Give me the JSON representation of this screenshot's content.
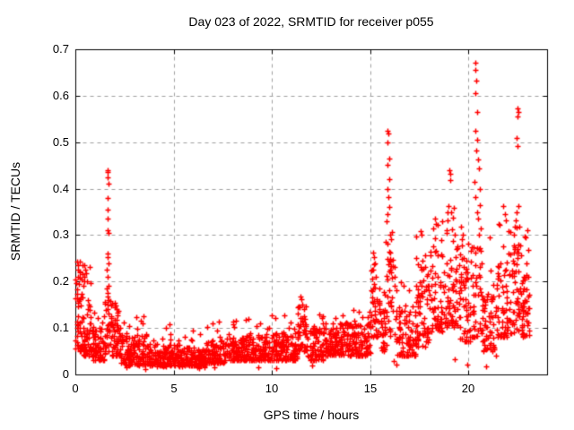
{
  "chart_data": {
    "type": "scatter",
    "title": "Day 023 of 2022, SRMTID for receiver p055",
    "xlabel": "GPS time / hours",
    "ylabel": "SRMTID / TECUs",
    "xlim": [
      0,
      24
    ],
    "ylim": [
      0,
      0.7
    ],
    "xticks": [
      0,
      5,
      10,
      15,
      20
    ],
    "xtick_labels": [
      "0",
      "5",
      "10",
      "15",
      "20"
    ],
    "yticks": [
      0,
      0.1,
      0.2,
      0.3,
      0.4,
      0.5,
      0.6,
      0.7
    ],
    "ytick_labels": [
      "0",
      "0.1",
      "0.2",
      "0.3",
      "0.4",
      "0.5",
      "0.6",
      "0.7"
    ],
    "grid": {
      "show": true,
      "style": "dashed",
      "color": "#a0a0a0"
    },
    "background": "#ffffff",
    "border_color": "#000000",
    "legend": "none",
    "series": [
      {
        "name": "SRMTID",
        "marker": "plus",
        "color": "#ff0000",
        "marker_size": 7
      }
    ],
    "seed": 20220123,
    "points_format": "[gps_hour, srmtid_tecu] - individually legible points read off the plot",
    "points": [
      [
        0.08,
        0.243
      ],
      [
        0.12,
        0.21
      ],
      [
        0.15,
        0.235
      ],
      [
        0.22,
        0.22
      ],
      [
        0.3,
        0.205
      ],
      [
        0.4,
        0.19
      ],
      [
        0.45,
        0.235
      ],
      [
        0.5,
        0.225
      ],
      [
        0.55,
        0.218
      ],
      [
        0.6,
        0.2
      ],
      [
        1.62,
        0.44
      ],
      [
        1.66,
        0.435
      ],
      [
        1.64,
        0.425
      ],
      [
        1.67,
        0.41
      ],
      [
        1.63,
        0.38
      ],
      [
        1.66,
        0.355
      ],
      [
        1.64,
        0.335
      ],
      [
        1.62,
        0.31
      ],
      [
        1.67,
        0.305
      ],
      [
        1.65,
        0.26
      ],
      [
        1.63,
        0.252
      ],
      [
        1.69,
        0.24
      ],
      [
        1.61,
        0.225
      ],
      [
        1.66,
        0.21
      ],
      [
        1.71,
        0.19
      ],
      [
        1.59,
        0.185
      ],
      [
        1.64,
        0.175
      ],
      [
        1.68,
        0.16
      ],
      [
        1.62,
        0.15
      ],
      [
        1.65,
        0.14
      ],
      [
        2.0,
        0.155
      ],
      [
        2.05,
        0.148
      ],
      [
        2.1,
        0.14
      ],
      [
        2.15,
        0.133
      ],
      [
        11.4,
        0.145
      ],
      [
        11.45,
        0.168
      ],
      [
        11.5,
        0.162
      ],
      [
        11.55,
        0.15
      ],
      [
        15.1,
        0.225
      ],
      [
        15.15,
        0.262
      ],
      [
        15.18,
        0.195
      ],
      [
        15.2,
        0.252
      ],
      [
        15.25,
        0.24
      ],
      [
        15.3,
        0.21
      ],
      [
        15.9,
        0.525
      ],
      [
        15.93,
        0.518
      ],
      [
        15.88,
        0.5
      ],
      [
        15.95,
        0.465
      ],
      [
        15.9,
        0.452
      ],
      [
        15.97,
        0.42
      ],
      [
        15.86,
        0.4
      ],
      [
        15.92,
        0.382
      ],
      [
        15.95,
        0.36
      ],
      [
        15.89,
        0.345
      ],
      [
        15.84,
        0.33
      ],
      [
        16.0,
        0.3
      ],
      [
        15.8,
        0.285
      ],
      [
        16.03,
        0.262
      ],
      [
        15.95,
        0.245
      ],
      [
        16.05,
        0.22
      ],
      [
        15.87,
        0.205
      ],
      [
        16.55,
        0.198
      ],
      [
        16.7,
        0.19
      ],
      [
        17.55,
        0.308
      ],
      [
        17.62,
        0.3
      ],
      [
        18.2,
        0.315
      ],
      [
        18.3,
        0.335
      ],
      [
        18.42,
        0.322
      ],
      [
        18.9,
        0.305
      ],
      [
        18.94,
        0.332
      ],
      [
        18.98,
        0.362
      ],
      [
        19.02,
        0.44
      ],
      [
        19.05,
        0.418
      ],
      [
        19.08,
        0.432
      ],
      [
        19.12,
        0.35
      ],
      [
        19.18,
        0.312
      ],
      [
        19.6,
        0.318
      ],
      [
        19.72,
        0.3
      ],
      [
        20.3,
        0.415
      ],
      [
        20.33,
        0.382
      ],
      [
        20.34,
        0.525
      ],
      [
        20.35,
        0.672
      ],
      [
        20.36,
        0.605
      ],
      [
        20.37,
        0.655
      ],
      [
        20.4,
        0.632
      ],
      [
        20.4,
        0.483
      ],
      [
        20.42,
        0.565
      ],
      [
        20.44,
        0.505
      ],
      [
        20.45,
        0.35
      ],
      [
        20.47,
        0.462
      ],
      [
        20.5,
        0.335
      ],
      [
        20.52,
        0.443
      ],
      [
        20.55,
        0.3
      ],
      [
        20.57,
        0.4
      ],
      [
        20.6,
        0.365
      ],
      [
        20.62,
        0.315
      ],
      [
        21.1,
        0.295
      ],
      [
        21.6,
        0.322
      ],
      [
        21.75,
        0.362
      ],
      [
        21.85,
        0.345
      ],
      [
        21.9,
        0.332
      ],
      [
        22.4,
        0.332
      ],
      [
        22.44,
        0.35
      ],
      [
        22.47,
        0.51
      ],
      [
        22.5,
        0.572
      ],
      [
        22.5,
        0.492
      ],
      [
        22.51,
        0.555
      ],
      [
        22.54,
        0.565
      ],
      [
        22.56,
        0.362
      ],
      [
        22.6,
        0.318
      ],
      [
        22.9,
        0.295
      ],
      [
        23.0,
        0.31
      ],
      [
        2.62,
        0.016
      ],
      [
        3.58,
        0.012
      ],
      [
        6.28,
        0.014
      ],
      [
        7.05,
        0.016
      ],
      [
        9.3,
        0.015
      ],
      [
        10.22,
        0.013
      ],
      [
        12.05,
        0.02
      ],
      [
        16.2,
        0.028
      ],
      [
        16.35,
        0.022
      ],
      [
        19.3,
        0.032
      ],
      [
        19.95,
        0.022
      ],
      [
        20.9,
        0.018
      ],
      [
        21.4,
        0.04
      ]
    ],
    "clusters_format": "[x_start_hour, x_end_hour, n_points, y_min, y_max, low_bias_exponent, y_tail_max, n_tail_points] - dense scatter bands approximated from the plot",
    "clusters": [
      [
        0.0,
        0.35,
        45,
        0.05,
        0.2,
        1.6,
        0.26,
        6
      ],
      [
        0.35,
        0.85,
        55,
        0.04,
        0.16,
        1.7,
        0.24,
        6
      ],
      [
        0.85,
        1.5,
        65,
        0.03,
        0.1,
        1.6,
        0.135,
        5
      ],
      [
        1.5,
        1.85,
        30,
        0.05,
        0.17,
        1.2,
        0.19,
        0
      ],
      [
        1.85,
        2.3,
        45,
        0.04,
        0.12,
        1.5,
        0.16,
        4
      ],
      [
        2.3,
        3.2,
        85,
        0.02,
        0.085,
        1.5,
        0.13,
        6
      ],
      [
        3.2,
        3.65,
        45,
        0.02,
        0.09,
        1.5,
        0.125,
        3
      ],
      [
        3.65,
        5.0,
        130,
        0.018,
        0.065,
        1.4,
        0.11,
        7
      ],
      [
        5.0,
        6.0,
        95,
        0.018,
        0.065,
        1.4,
        0.11,
        5
      ],
      [
        6.0,
        6.6,
        60,
        0.015,
        0.055,
        1.4,
        0.095,
        3
      ],
      [
        6.6,
        7.6,
        95,
        0.025,
        0.075,
        1.4,
        0.125,
        5
      ],
      [
        7.6,
        8.6,
        95,
        0.03,
        0.08,
        1.4,
        0.12,
        5
      ],
      [
        8.6,
        9.6,
        95,
        0.03,
        0.085,
        1.4,
        0.125,
        5
      ],
      [
        9.6,
        10.8,
        110,
        0.03,
        0.09,
        1.5,
        0.13,
        6
      ],
      [
        10.8,
        11.3,
        50,
        0.03,
        0.09,
        1.5,
        0.12,
        3
      ],
      [
        11.3,
        11.8,
        45,
        0.05,
        0.13,
        1.3,
        0.165,
        5
      ],
      [
        11.8,
        12.6,
        75,
        0.03,
        0.1,
        1.5,
        0.135,
        4
      ],
      [
        12.6,
        13.2,
        60,
        0.04,
        0.1,
        1.4,
        0.135,
        3
      ],
      [
        13.2,
        14.2,
        90,
        0.04,
        0.11,
        1.4,
        0.145,
        5
      ],
      [
        14.2,
        15.0,
        75,
        0.04,
        0.11,
        1.4,
        0.135,
        4
      ],
      [
        15.0,
        15.5,
        40,
        0.08,
        0.2,
        1.3,
        0.24,
        4
      ],
      [
        15.5,
        15.85,
        30,
        0.05,
        0.15,
        1.4,
        0.18,
        2
      ],
      [
        15.85,
        16.25,
        30,
        0.08,
        0.28,
        1.1,
        0.33,
        3
      ],
      [
        16.25,
        17.3,
        85,
        0.04,
        0.14,
        1.6,
        0.19,
        5
      ],
      [
        17.3,
        18.0,
        70,
        0.06,
        0.24,
        1.5,
        0.3,
        4
      ],
      [
        18.0,
        18.7,
        60,
        0.09,
        0.28,
        1.5,
        0.335,
        4
      ],
      [
        18.7,
        19.5,
        60,
        0.1,
        0.3,
        1.6,
        0.36,
        4
      ],
      [
        19.5,
        20.1,
        55,
        0.07,
        0.26,
        1.6,
        0.31,
        3
      ],
      [
        20.1,
        20.7,
        45,
        0.08,
        0.28,
        1.4,
        0.33,
        0
      ],
      [
        20.7,
        21.4,
        60,
        0.05,
        0.17,
        1.5,
        0.25,
        4
      ],
      [
        21.4,
        22.2,
        65,
        0.08,
        0.26,
        1.5,
        0.33,
        4
      ],
      [
        22.2,
        22.65,
        45,
        0.09,
        0.28,
        1.4,
        0.34,
        3
      ],
      [
        22.65,
        23.1,
        50,
        0.08,
        0.22,
        1.4,
        0.3,
        4
      ]
    ]
  }
}
